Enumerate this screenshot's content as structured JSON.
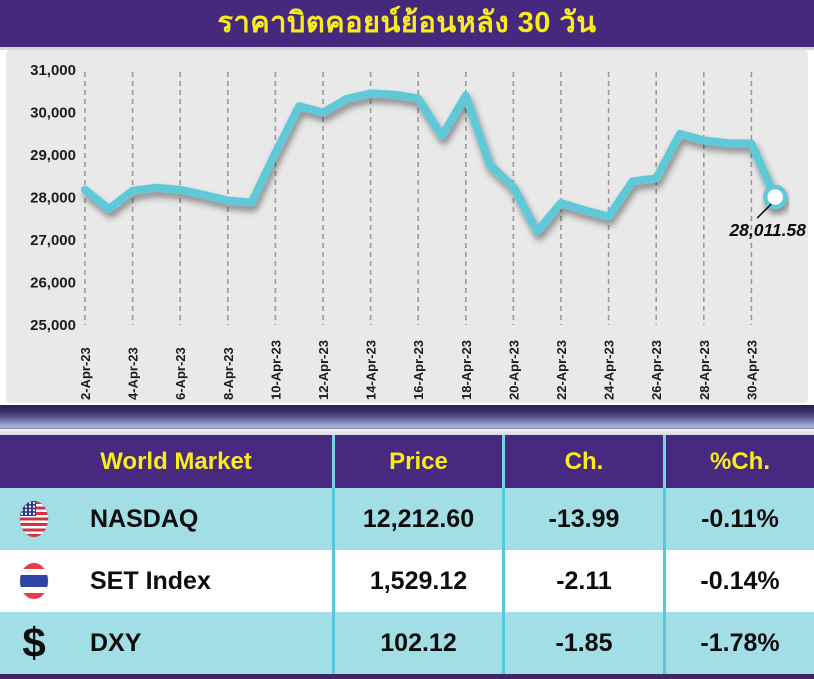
{
  "title": "ราคาบิตคอยน์ย้อนหลัง 30 วัน",
  "colors": {
    "title_bg": "#46287e",
    "title_text": "#f8ec1a",
    "chart_panel_bg": "#e9e9e9",
    "line": "#5ec9d9",
    "table_header_bg": "#472a80",
    "table_header_text": "#f8ec1a",
    "row_cyan": "#a2dee6",
    "column_divider": "#53c9da"
  },
  "chart_data": {
    "type": "line",
    "title": "ราคาบิตคอยน์ย้อนหลัง 30 วัน",
    "xlabel": "",
    "ylabel": "",
    "ylim": [
      25000,
      31000
    ],
    "grid": "vertical-dashed",
    "legend_position": "none",
    "line_color": "#5ec9d9",
    "x": [
      "2-Apr-23",
      "3-Apr-23",
      "4-Apr-23",
      "5-Apr-23",
      "6-Apr-23",
      "7-Apr-23",
      "8-Apr-23",
      "9-Apr-23",
      "10-Apr-23",
      "11-Apr-23",
      "12-Apr-23",
      "13-Apr-23",
      "14-Apr-23",
      "15-Apr-23",
      "16-Apr-23",
      "17-Apr-23",
      "18-Apr-23",
      "19-Apr-23",
      "20-Apr-23",
      "21-Apr-23",
      "22-Apr-23",
      "23-Apr-23",
      "24-Apr-23",
      "25-Apr-23",
      "26-Apr-23",
      "27-Apr-23",
      "28-Apr-23",
      "29-Apr-23",
      "30-Apr-23",
      "1-May-23"
    ],
    "values": [
      28180,
      27730,
      28160,
      28230,
      28180,
      28060,
      27930,
      27880,
      29050,
      30150,
      30000,
      30320,
      30450,
      30420,
      30330,
      29450,
      30400,
      28780,
      28250,
      27200,
      27870,
      27700,
      27550,
      28380,
      28450,
      29500,
      29340,
      29280,
      29270,
      28011.58
    ],
    "tick_labels": [
      "2-Apr-23",
      "4-Apr-23",
      "6-Apr-23",
      "8-Apr-23",
      "10-Apr-23",
      "12-Apr-23",
      "14-Apr-23",
      "16-Apr-23",
      "18-Apr-23",
      "20-Apr-23",
      "22-Apr-23",
      "24-Apr-23",
      "26-Apr-23",
      "28-Apr-23",
      "30-Apr-23"
    ],
    "y_ticks": [
      25000,
      26000,
      27000,
      28000,
      29000,
      30000,
      31000
    ],
    "y_tick_labels": [
      "25,000",
      "26,000",
      "27,000",
      "28,000",
      "29,000",
      "30,000",
      "31,000"
    ],
    "last_point_label": "28,011.58"
  },
  "table": {
    "headers": [
      "World Market",
      "Price",
      "Ch.",
      "%Ch."
    ],
    "rows": [
      {
        "icon": "us-flag",
        "name": "NASDAQ",
        "price": "12,212.60",
        "ch": "-13.99",
        "pct": "-0.11%"
      },
      {
        "icon": "thai-flag",
        "name": "SET Index",
        "price": "1,529.12",
        "ch": "-2.11",
        "pct": "-0.14%"
      },
      {
        "icon": "dollar-sign",
        "icon_glyph": "$",
        "name": "DXY",
        "price": "102.12",
        "ch": "-1.85",
        "pct": "-1.78%"
      }
    ]
  }
}
